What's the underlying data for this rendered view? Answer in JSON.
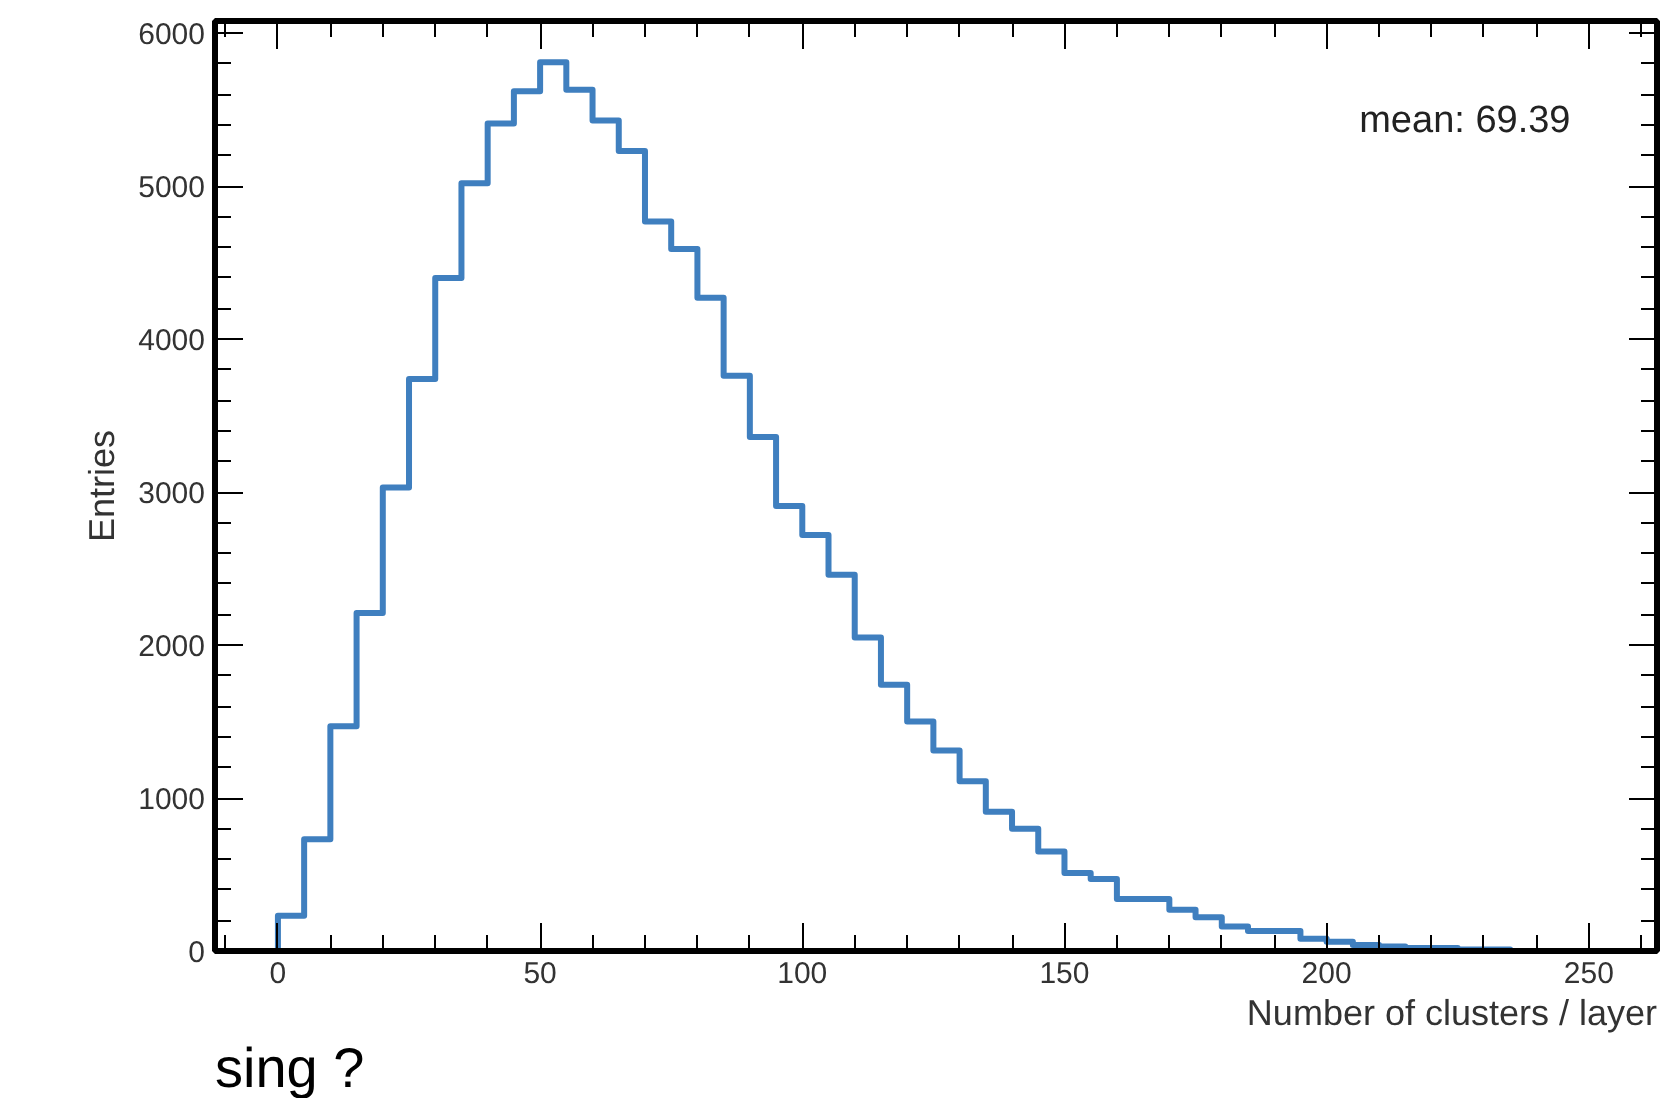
{
  "chart_data": {
    "type": "histogram",
    "xlabel": "Number of clusters / layer",
    "ylabel": "Entries",
    "annotations": [
      "mean: 69.39",
      "sing ?"
    ],
    "bins": [
      0,
      5,
      10,
      15,
      20,
      25,
      30,
      35,
      40,
      45,
      50,
      55,
      60,
      65,
      70,
      75,
      80,
      85,
      90,
      95,
      100,
      105,
      110,
      115,
      120,
      125,
      130,
      135,
      140,
      145,
      150,
      155,
      160,
      165,
      170,
      175,
      180,
      185,
      190,
      195,
      200,
      205,
      210,
      215,
      220,
      225,
      230,
      235
    ],
    "values": [
      230,
      730,
      1470,
      2210,
      3030,
      3740,
      4400,
      5020,
      5410,
      5620,
      5810,
      5630,
      5430,
      5230,
      4770,
      4590,
      4270,
      3760,
      3360,
      2910,
      2720,
      2460,
      2050,
      1740,
      1500,
      1310,
      1110,
      910,
      800,
      650,
      510,
      470,
      340,
      340,
      270,
      220,
      160,
      130,
      130,
      80,
      60,
      40,
      30,
      20,
      20,
      10,
      10
    ],
    "color": "#3f7fbf",
    "xlim": [
      -12,
      263
    ],
    "ylim": [
      0,
      6080
    ],
    "xticks": [
      0,
      50,
      100,
      150,
      200,
      250
    ],
    "yticks": [
      0,
      1000,
      2000,
      3000,
      4000,
      5000,
      6000
    ],
    "grid": false
  }
}
